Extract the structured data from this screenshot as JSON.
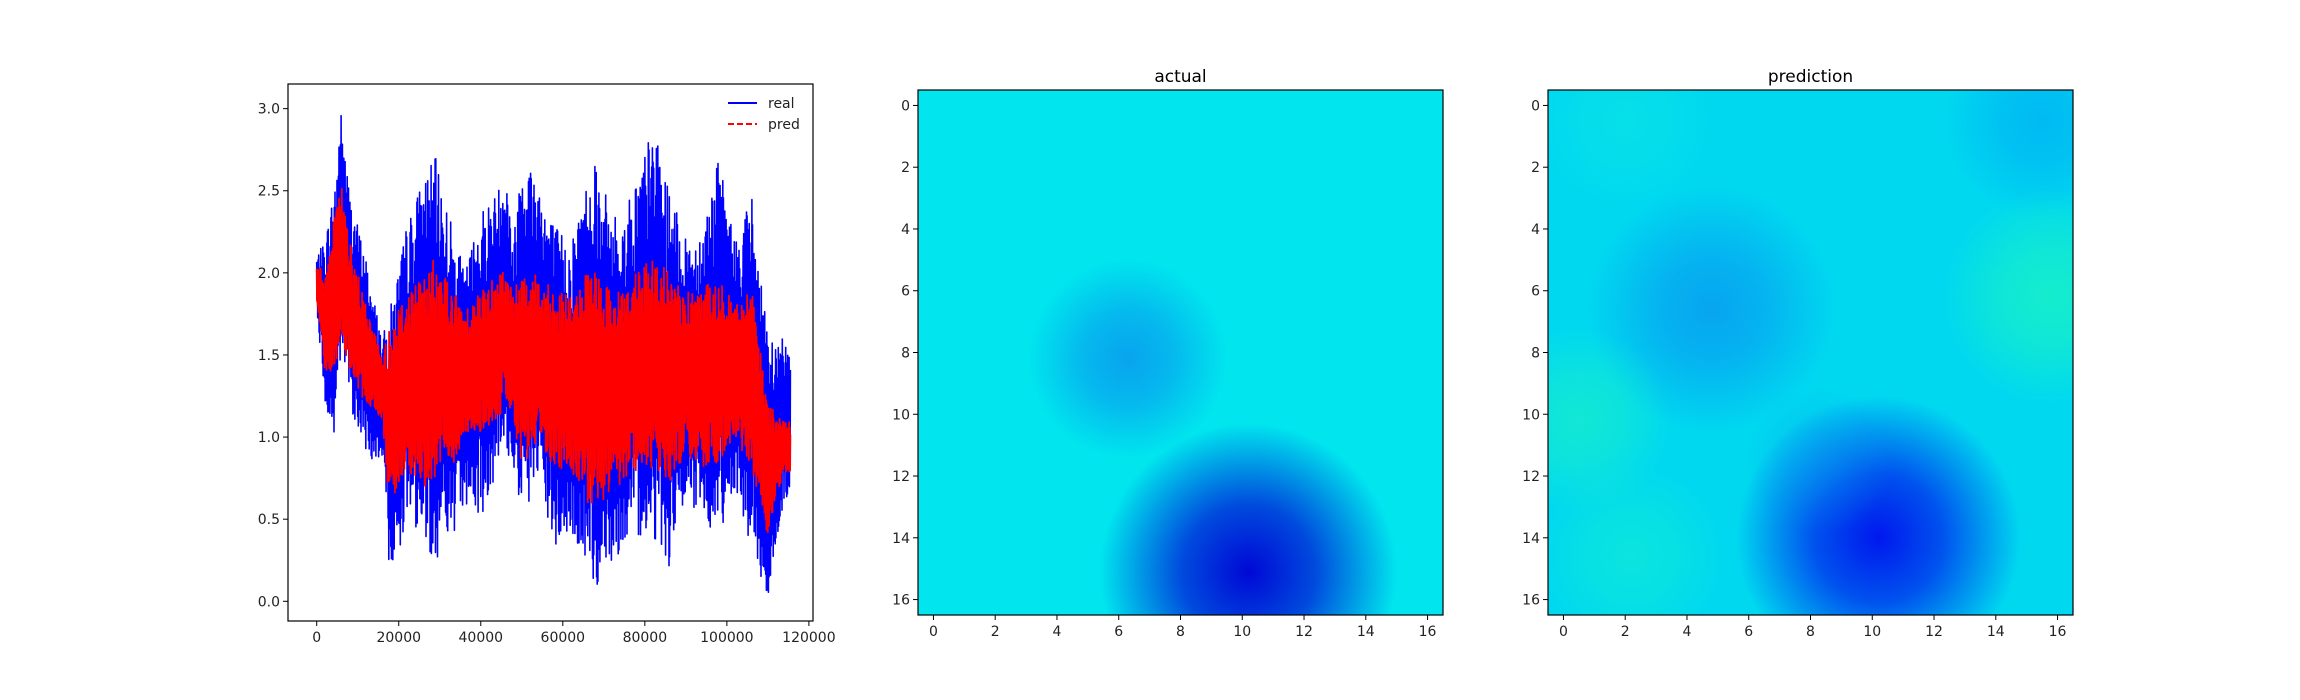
{
  "chart_data": [
    {
      "type": "line",
      "title": "",
      "xlabel": "",
      "ylabel": "",
      "xlim": [
        -7000,
        121000
      ],
      "ylim": [
        -0.12,
        3.15
      ],
      "xticks": [
        "0",
        "20000",
        "40000",
        "60000",
        "80000",
        "100000",
        "120000"
      ],
      "yticks": [
        "0.0",
        "0.5",
        "1.0",
        "1.5",
        "2.0",
        "2.5",
        "3.0"
      ],
      "legend": "top-right",
      "series": [
        {
          "name": "real",
          "color": "#0000ff",
          "style": "solid",
          "envelope": {
            "x": [
              0,
              2000,
              4000,
              6000,
              8000,
              12000,
              16000,
              18000,
              22000,
              26000,
              29000,
              31000,
              33000,
              36000,
              40000,
              44000,
              46000,
              48000,
              50000,
              54000,
              58000,
              62000,
              66000,
              68000,
              70000,
              74000,
              78000,
              82000,
              86000,
              90000,
              94000,
              98000,
              102000,
              106000,
              110000,
              114000,
              115500
            ],
            "min": [
              1.8,
              1.2,
              0.9,
              1.5,
              1.2,
              0.9,
              0.8,
              0.1,
              0.5,
              0.4,
              0.2,
              0.5,
              0.3,
              0.6,
              0.5,
              0.8,
              0.9,
              0.8,
              0.5,
              0.7,
              0.3,
              0.4,
              0.2,
              0.05,
              0.2,
              0.3,
              0.4,
              0.4,
              0.2,
              0.6,
              0.5,
              0.4,
              0.7,
              0.3,
              0.0,
              0.6,
              0.65
            ],
            "max": [
              2.1,
              2.2,
              2.5,
              3.0,
              2.5,
              2.1,
              1.6,
              1.8,
              2.3,
              2.6,
              2.7,
              2.5,
              2.3,
              2.0,
              2.4,
              2.5,
              2.7,
              2.2,
              2.8,
              2.6,
              2.3,
              2.2,
              2.6,
              2.8,
              2.5,
              2.3,
              2.6,
              2.9,
              2.5,
              2.2,
              2.3,
              2.7,
              2.2,
              2.5,
              1.6,
              1.6,
              1.6
            ]
          }
        },
        {
          "name": "pred",
          "color": "#ff0000",
          "style": "dashed",
          "envelope": {
            "x": [
              0,
              2000,
              4000,
              6000,
              8000,
              12000,
              16000,
              18000,
              22000,
              26000,
              29000,
              31000,
              33000,
              36000,
              40000,
              44000,
              46000,
              48000,
              50000,
              54000,
              58000,
              62000,
              66000,
              68000,
              70000,
              74000,
              78000,
              82000,
              86000,
              90000,
              94000,
              98000,
              102000,
              106000,
              110000,
              114000,
              115500
            ],
            "min": [
              1.8,
              1.4,
              1.3,
              1.6,
              1.4,
              1.2,
              1.1,
              0.5,
              0.8,
              0.7,
              0.7,
              0.9,
              0.8,
              1.0,
              1.0,
              1.1,
              1.2,
              1.1,
              0.8,
              1.0,
              0.8,
              0.8,
              0.6,
              0.6,
              0.6,
              0.7,
              0.8,
              0.8,
              0.7,
              0.9,
              0.8,
              0.8,
              1.0,
              0.8,
              0.4,
              0.8,
              0.75
            ],
            "max": [
              2.05,
              2.0,
              2.3,
              2.55,
              2.2,
              1.8,
              1.5,
              1.7,
              1.9,
              2.0,
              2.1,
              2.0,
              1.9,
              1.8,
              1.9,
              2.0,
              2.05,
              1.9,
              2.05,
              2.0,
              1.9,
              1.85,
              2.0,
              2.0,
              1.95,
              1.9,
              2.0,
              2.1,
              2.0,
              1.9,
              1.9,
              2.0,
              1.8,
              1.9,
              1.2,
              1.1,
              1.1
            ]
          }
        }
      ]
    },
    {
      "type": "heatmap",
      "title": "actual",
      "extent": [
        -0.5,
        16.5
      ],
      "xticks": [
        "0",
        "2",
        "4",
        "6",
        "8",
        "10",
        "12",
        "14",
        "16"
      ],
      "yticks": [
        "0",
        "2",
        "4",
        "6",
        "8",
        "10",
        "12",
        "14",
        "16"
      ],
      "colormap": "cyan-to-blue",
      "field": {
        "background": "#00e5ee",
        "blobs": [
          {
            "cx": 6.3,
            "cy": 8.2,
            "r": 3.2,
            "color": "#0a8fee",
            "strength": 0.75
          },
          {
            "cx": 10.2,
            "cy": 15.1,
            "r": 4.8,
            "color": "#0008d6",
            "strength": 1.0
          }
        ]
      }
    },
    {
      "type": "heatmap",
      "title": "prediction",
      "extent": [
        -0.5,
        16.5
      ],
      "xticks": [
        "0",
        "2",
        "4",
        "6",
        "8",
        "10",
        "12",
        "14",
        "16"
      ],
      "yticks": [
        "0",
        "2",
        "4",
        "6",
        "8",
        "10",
        "12",
        "14",
        "16"
      ],
      "colormap": "cyan-to-blue",
      "field": {
        "background": "#00d8f0",
        "blobs": [
          {
            "cx": 4.8,
            "cy": 6.6,
            "r": 4.0,
            "color": "#0a8ff0",
            "strength": 0.7
          },
          {
            "cx": 10.2,
            "cy": 14.0,
            "r": 4.6,
            "color": "#0018ee",
            "strength": 1.0
          },
          {
            "cx": 15.5,
            "cy": 0.5,
            "r": 3.2,
            "color": "#00a6f4",
            "strength": 0.6
          },
          {
            "cx": 15.8,
            "cy": 6.2,
            "r": 3.5,
            "color": "#1bf2c4",
            "strength": 0.8
          },
          {
            "cx": 0.5,
            "cy": 10.2,
            "r": 3.0,
            "color": "#1cf0c6",
            "strength": 0.65
          },
          {
            "cx": 2.2,
            "cy": 14.6,
            "r": 3.0,
            "color": "#14eed0",
            "strength": 0.55
          },
          {
            "cx": 2.0,
            "cy": 0.5,
            "r": 2.8,
            "color": "#10ecdc",
            "strength": 0.4
          },
          {
            "cx": 8.3,
            "cy": 11.5,
            "r": 2.4,
            "color": "#0a9cf0",
            "strength": 0.35
          }
        ]
      }
    }
  ]
}
